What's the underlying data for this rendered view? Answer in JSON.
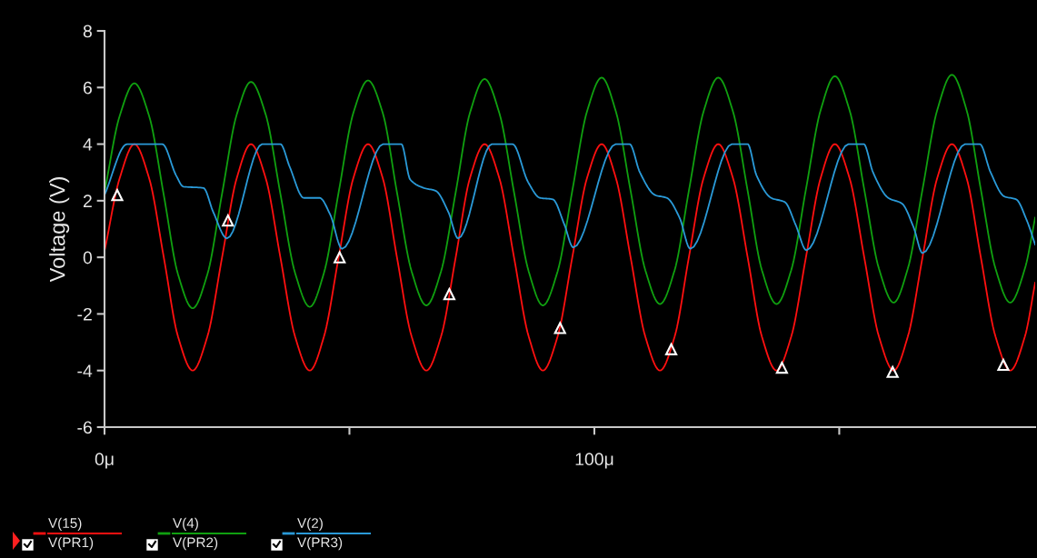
{
  "chart_data": {
    "type": "line",
    "ylabel": "Voltage (V)",
    "xlim": [
      0,
      190
    ],
    "ylim": [
      -6,
      8
    ],
    "xticks": [
      {
        "value": 0,
        "label": "0μ"
      },
      {
        "value": 50,
        "label": null
      },
      {
        "value": 100,
        "label": "100μ"
      },
      {
        "value": 150,
        "label": null
      }
    ],
    "yticks": [
      -6,
      -4,
      -2,
      0,
      2,
      4,
      6,
      8
    ],
    "legend": "bottom",
    "grid": false,
    "line_style": "solid",
    "series": [
      {
        "name": "V(15)\nV(PR1)",
        "color": "#ff1010",
        "x": [
          0.1,
          3.1,
          6.1,
          9.1,
          12.1,
          15.0,
          18.0,
          21.0,
          24.0,
          27.0,
          29.9,
          32.9,
          35.9,
          38.9,
          41.9,
          44.8,
          47.8,
          50.8,
          53.8,
          56.8,
          59.7,
          62.7,
          65.7,
          68.7,
          71.7,
          74.6,
          77.6,
          80.6,
          83.6,
          86.6,
          89.5,
          92.5,
          95.5,
          98.5,
          101.5,
          104.4,
          107.4,
          110.4,
          113.4,
          116.4,
          119.3,
          122.3,
          125.3,
          128.3,
          131.3,
          134.2,
          137.2,
          140.2,
          143.2,
          146.2,
          149.1,
          152.1,
          155.1,
          158.1,
          161.1,
          164.0,
          167.0,
          170.0,
          173.0,
          176.0,
          178.9,
          181.9,
          184.9,
          187.9,
          190
        ],
        "values": [
          0.3,
          2.8,
          4,
          2.8,
          0,
          -2.8,
          -4,
          -2.8,
          0,
          2.8,
          4,
          2.8,
          0,
          -2.8,
          -4,
          -2.8,
          0,
          2.8,
          4,
          2.8,
          0,
          -2.8,
          -4,
          -2.8,
          0,
          2.8,
          4,
          2.8,
          0,
          -2.8,
          -4,
          -2.8,
          0,
          2.8,
          4,
          2.8,
          0,
          -2.8,
          -4,
          -2.8,
          0,
          2.8,
          4,
          2.8,
          0,
          -2.8,
          -4,
          -2.8,
          0,
          2.8,
          4,
          2.8,
          0,
          -2.8,
          -4,
          -2.8,
          0,
          2.8,
          4,
          2.8,
          0,
          -2.8,
          -4,
          -2.8,
          -0.9
        ]
      },
      {
        "name": "V(4)\nV(PR2)",
        "color": "#10a010",
        "x": [
          0.1,
          3.1,
          6.1,
          9.1,
          12.1,
          15.0,
          18.0,
          21.0,
          24.0,
          27.0,
          29.9,
          32.9,
          35.9,
          38.9,
          41.9,
          44.8,
          47.8,
          50.8,
          53.8,
          56.8,
          59.7,
          62.7,
          65.7,
          68.7,
          71.7,
          74.6,
          77.6,
          80.6,
          83.6,
          86.6,
          89.5,
          92.5,
          95.5,
          98.5,
          101.5,
          104.4,
          107.4,
          110.4,
          113.4,
          116.4,
          119.3,
          122.3,
          125.3,
          128.3,
          131.3,
          134.2,
          137.2,
          140.2,
          143.2,
          146.2,
          149.1,
          152.1,
          155.1,
          158.1,
          161.1,
          164.0,
          167.0,
          170.0,
          173.0,
          176.0,
          178.9,
          181.9,
          184.9,
          187.9,
          190
        ],
        "values": [
          2.4,
          5.0,
          6.15,
          5.0,
          2.2,
          -0.6,
          -1.8,
          -0.6,
          2.25,
          5.05,
          6.2,
          5.05,
          2.25,
          -0.55,
          -1.75,
          -0.55,
          2.3,
          5.1,
          6.25,
          5.1,
          2.3,
          -0.5,
          -1.7,
          -0.5,
          2.3,
          5.1,
          6.3,
          5.1,
          2.3,
          -0.5,
          -1.7,
          -0.5,
          2.35,
          5.15,
          6.35,
          5.15,
          2.35,
          -0.45,
          -1.65,
          -0.45,
          2.35,
          5.15,
          6.35,
          5.15,
          2.35,
          -0.45,
          -1.65,
          -0.45,
          2.4,
          5.2,
          6.4,
          5.2,
          2.4,
          -0.4,
          -1.6,
          -0.4,
          2.4,
          5.2,
          6.45,
          5.2,
          2.4,
          -0.4,
          -1.6,
          -0.4,
          1.4
        ]
      },
      {
        "name": "V(2)\nV(PR3)",
        "color": "#2a9ad8",
        "x": [
          0,
          4.6,
          11.8,
          14.6,
          16.1,
          20.2,
          22.2,
          25.0,
          32.2,
          35.9,
          37.8,
          40.7,
          43.9,
          46.1,
          48.5,
          56.9,
          60.6,
          62.4,
          65.2,
          67.6,
          70.2,
          72.2,
          79.1,
          83.3,
          86.5,
          88.9,
          91.5,
          93.9,
          95.7,
          104.4,
          107.2,
          109.3,
          112.4,
          114.8,
          117.4,
          119.6,
          128.1,
          131.3,
          133.1,
          136.1,
          138.9,
          141.1,
          143.3,
          151.9,
          155.0,
          156.9,
          160.0,
          162.8,
          165.2,
          167.0,
          175.7,
          178.7,
          180.9,
          183.7,
          186.1,
          188.3,
          190
        ],
        "values": [
          2.2,
          4,
          4,
          2.9,
          2.5,
          2.45,
          1.6,
          0.67,
          4,
          4,
          3.2,
          2.1,
          2.1,
          1.5,
          0.3,
          4,
          4,
          2.75,
          2.45,
          2.35,
          1.6,
          0.67,
          4,
          4,
          2.65,
          2.1,
          2.05,
          1.15,
          0.35,
          4,
          4,
          3.0,
          2.2,
          2.1,
          1.4,
          0.3,
          4,
          4,
          2.9,
          2.1,
          1.95,
          1.15,
          0.25,
          4,
          4,
          3.0,
          2.1,
          1.9,
          1.05,
          0.15,
          4,
          4,
          3.0,
          2.15,
          2.05,
          1.3,
          0.45
        ]
      },
      {
        "color": "#ffffff",
        "type": "scatter",
        "marker": "triangle",
        "x": [
          2.6,
          25.2,
          48.0,
          70.4,
          93.0,
          115.7,
          138.3,
          160.9,
          183.5
        ],
        "values": [
          2.2,
          1.3,
          0.0,
          -1.3,
          -2.5,
          -3.25,
          -3.9,
          -4.05,
          -3.8
        ]
      }
    ]
  }
}
